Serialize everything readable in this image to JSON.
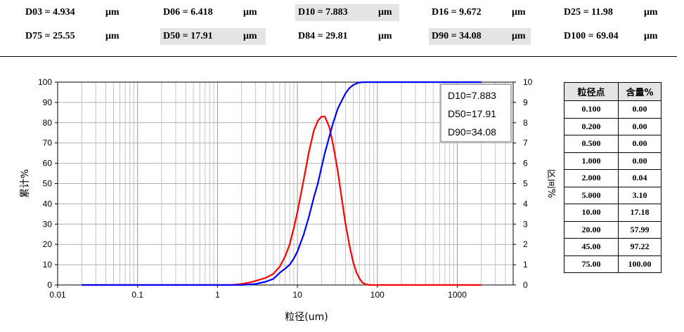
{
  "stats": [
    {
      "label": "D03 = 4.934",
      "unit": "μm",
      "highlight": false
    },
    {
      "label": "D06 = 6.418",
      "unit": "μm",
      "highlight": false
    },
    {
      "label": "D10 = 7.883",
      "unit": "μm",
      "highlight": true
    },
    {
      "label": "D16 = 9.672",
      "unit": "μm",
      "highlight": false
    },
    {
      "label": "D25 = 11.98",
      "unit": "μm",
      "highlight": false
    },
    {
      "label": "D75 = 25.55",
      "unit": "μm",
      "highlight": false
    },
    {
      "label": "D50 = 17.91",
      "unit": "μm",
      "highlight": true
    },
    {
      "label": "D84 = 29.81",
      "unit": "μm",
      "highlight": false
    },
    {
      "label": "D90 = 34.08",
      "unit": "μm",
      "highlight": true
    },
    {
      "label": "D100 = 69.04",
      "unit": "μm",
      "highlight": false
    }
  ],
  "chart_data": {
    "type": "line",
    "xlabel": "粒径(um)",
    "ylabel_left": "累计%",
    "ylabel_right": "区间%",
    "x_scale": "log",
    "xlim": [
      0.01,
      5000
    ],
    "x_ticks": [
      "0.01",
      "0.1",
      "1",
      "10",
      "100",
      "1000"
    ],
    "ylim_left": [
      0,
      100
    ],
    "y_ticks_left": [
      "0",
      "10",
      "20",
      "30",
      "40",
      "50",
      "60",
      "70",
      "80",
      "90",
      "100"
    ],
    "ylim_right": [
      0,
      10
    ],
    "y_ticks_right": [
      "0",
      "1",
      "2",
      "3",
      "4",
      "5",
      "6",
      "7",
      "8",
      "9",
      "10"
    ],
    "grid": true,
    "legend_position": "top-right",
    "legend": [
      "D10=7.883",
      "D50=17.91",
      "D90=34.08"
    ],
    "series": [
      {
        "axis": "right",
        "color": "#ff0000",
        "x": [
          0.02,
          1.5,
          2,
          2.5,
          3,
          4,
          5,
          6,
          7,
          8,
          9,
          10,
          12,
          14,
          16,
          18,
          20,
          22,
          25,
          28,
          32,
          36,
          40,
          45,
          50,
          55,
          60,
          65,
          70,
          80,
          2000
        ],
        "y": [
          0,
          0,
          0.05,
          0.12,
          0.2,
          0.35,
          0.55,
          0.9,
          1.4,
          2.0,
          2.8,
          3.6,
          5.2,
          6.6,
          7.6,
          8.1,
          8.3,
          8.3,
          7.8,
          6.9,
          5.6,
          4.2,
          3.0,
          1.9,
          1.1,
          0.6,
          0.3,
          0.12,
          0.04,
          0,
          0
        ]
      },
      {
        "axis": "left",
        "color": "#0000ff",
        "x": [
          0.02,
          2,
          3,
          4,
          5,
          6,
          7,
          8,
          9,
          10,
          12,
          14,
          16,
          18,
          20,
          22,
          25,
          28,
          32,
          36,
          40,
          45,
          50,
          55,
          60,
          65,
          70,
          2000
        ],
        "y": [
          0,
          0,
          0.5,
          1.6,
          3,
          6,
          8,
          10,
          13,
          16.5,
          25,
          34,
          43,
          50,
          58,
          65,
          73,
          80,
          87,
          91,
          94.5,
          97.2,
          98.6,
          99.4,
          99.8,
          99.95,
          100,
          100
        ]
      }
    ]
  },
  "table": {
    "headers": [
      "粒径点",
      "含量%"
    ],
    "rows": [
      [
        "0.100",
        "0.00"
      ],
      [
        "0.200",
        "0.00"
      ],
      [
        "0.500",
        "0.00"
      ],
      [
        "1.000",
        "0.00"
      ],
      [
        "2.000",
        "0.04"
      ],
      [
        "5.000",
        "3.10"
      ],
      [
        "10.00",
        "17.18"
      ],
      [
        "20.00",
        "57.99"
      ],
      [
        "45.00",
        "97.22"
      ],
      [
        "75.00",
        "100.00"
      ]
    ]
  }
}
